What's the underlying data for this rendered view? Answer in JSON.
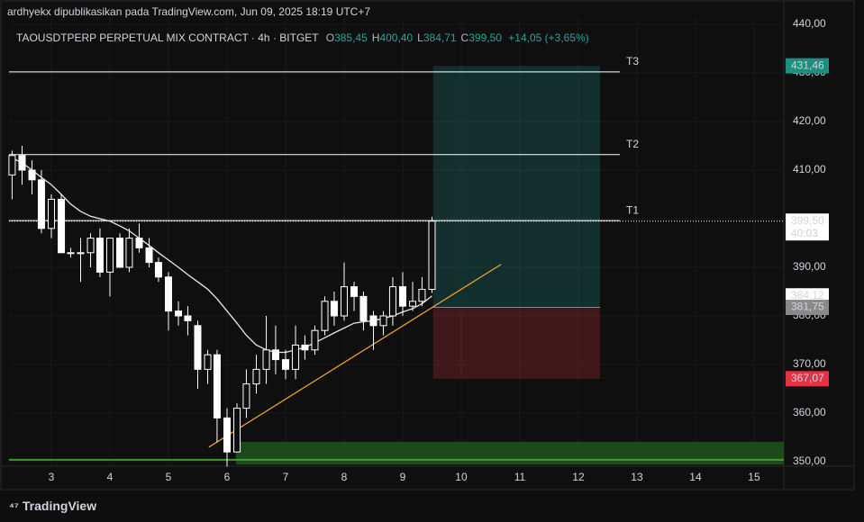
{
  "chart_data": {
    "type": "candlestick",
    "subtitle": "ardhyekx dipublikasikan pada TradingView.com, Jun 09, 2025 18:19 UTC+7",
    "title": "TAOUSDTPERP PERPETUAL MIX CONTRACT · 4h · BITGET",
    "header_ohlc": [
      {
        "key": "O",
        "value": 385.45,
        "label": "385,45"
      },
      {
        "key": "H",
        "value": 400.4,
        "label": "400,40"
      },
      {
        "key": "L",
        "value": 384.71,
        "label": "384,71"
      },
      {
        "key": "C",
        "value": 399.5,
        "label": "399,50"
      }
    ],
    "change": {
      "value": 14.05,
      "label": "+14,05"
    },
    "change_pct": {
      "value": 3.65,
      "label": "(+3,65%)"
    },
    "brand": "TradingView",
    "xlim": [
      2.277,
      15.508
    ],
    "xticks": [
      3,
      4,
      5,
      6,
      7,
      8,
      9,
      10,
      11,
      12,
      13,
      14,
      15
    ],
    "ylim": [
      349.07,
      441.3
    ],
    "yticks": [
      {
        "value": 350,
        "label": "350,00"
      },
      {
        "value": 360,
        "label": "360,00"
      },
      {
        "value": 370,
        "label": "370,00"
      },
      {
        "value": 380,
        "label": "380,00"
      },
      {
        "value": 390,
        "label": "390,00"
      },
      {
        "value": 400,
        "label": "400,00"
      },
      {
        "value": 410,
        "label": "410,00"
      },
      {
        "value": 420,
        "label": "420,00"
      },
      {
        "value": 430,
        "label": "430,00"
      },
      {
        "value": 440,
        "label": "440,00"
      }
    ],
    "candle_color": "#ffffff",
    "x": [
      2.33,
      2.5,
      2.67,
      2.83,
      3,
      3.17,
      3.33,
      3.5,
      3.67,
      3.83,
      4,
      4.17,
      4.33,
      4.5,
      4.67,
      4.83,
      5,
      5.17,
      5.33,
      5.5,
      5.67,
      5.83,
      6,
      6.17,
      6.33,
      6.5,
      6.67,
      6.83,
      7,
      7.17,
      7.33,
      7.5,
      7.67,
      7.83,
      8,
      8.17,
      8.33,
      8.5,
      8.67,
      8.83,
      9,
      9.17,
      9.33,
      9.5
    ],
    "open": [
      409,
      413,
      410,
      408,
      398,
      404,
      393,
      393,
      393,
      396,
      389,
      396,
      390,
      396,
      394,
      391,
      388,
      381,
      380,
      378,
      369,
      372,
      359,
      352,
      361,
      366,
      369,
      373,
      371,
      369,
      374,
      373,
      377,
      383,
      380,
      386,
      384,
      380,
      378,
      380,
      386,
      382,
      383,
      385.45
    ],
    "high": [
      414,
      415,
      412,
      410,
      405,
      405,
      394,
      396,
      397,
      398,
      396,
      397,
      398,
      399,
      396,
      392,
      389,
      383,
      382,
      379,
      373,
      373,
      361,
      362,
      369,
      372,
      380,
      378,
      373,
      378,
      376,
      378,
      384,
      385,
      391,
      387,
      385,
      381,
      381,
      388,
      389,
      387,
      388,
      400.4
    ],
    "low": [
      404,
      407,
      405,
      397,
      396,
      393,
      392,
      387,
      390,
      388,
      384,
      390,
      389,
      393,
      390,
      387,
      377,
      378,
      376,
      365,
      366,
      354,
      349,
      352,
      359,
      364,
      366,
      368,
      367,
      367,
      371,
      372,
      376,
      378,
      379,
      381,
      377,
      373,
      376,
      378,
      380,
      381,
      382,
      384.71
    ],
    "close": [
      413,
      410,
      408,
      398,
      404,
      393,
      393,
      393,
      396,
      389,
      396,
      390,
      396,
      394,
      391,
      388,
      381,
      380,
      379,
      369,
      372,
      359,
      352,
      361,
      366,
      369,
      373,
      371,
      369,
      374,
      373,
      377,
      383,
      380,
      386,
      384,
      379,
      378,
      380,
      386,
      382,
      383,
      385.45,
      399.5
    ],
    "ma": {
      "color": "#e8e8e8",
      "values": [
        412.5,
        411.5,
        410,
        408.5,
        407,
        405,
        403,
        401.5,
        400.5,
        400,
        399.5,
        398.5,
        397.5,
        396,
        394.5,
        393,
        391.5,
        390,
        388.5,
        387,
        385.5,
        383.5,
        381,
        378.5,
        376,
        374,
        373,
        372.5,
        372.5,
        373,
        373.5,
        374.5,
        375.5,
        376.5,
        377.5,
        378.5,
        378.8,
        379,
        379.5,
        380,
        380.8,
        381.5,
        382.5,
        384.12
      ],
      "last_label": {
        "value": 384.12,
        "label": "384,12"
      }
    },
    "last_price": {
      "value": 399.5,
      "label": "399,50",
      "countdown": "40:03"
    },
    "hlines": [
      {
        "label": "T3",
        "value": 430.2
      },
      {
        "label": "T2",
        "value": 413.2
      },
      {
        "label": "T1",
        "value": 399.6
      }
    ],
    "trendline": {
      "color": "#f0a030",
      "x": [
        5.69,
        10.68
      ],
      "values": [
        353,
        390.6
      ]
    },
    "position": {
      "x": [
        9.52,
        12.37
      ],
      "target": {
        "value": 431.46,
        "label": "431,46"
      },
      "entry": {
        "value": 381.75,
        "label": "381,75"
      },
      "stop": {
        "value": 367.07,
        "label": "367,07"
      }
    },
    "zone": {
      "x": [
        6.15,
        15.508
      ],
      "values": [
        349.4,
        354.1
      ],
      "line": 350.4
    }
  }
}
